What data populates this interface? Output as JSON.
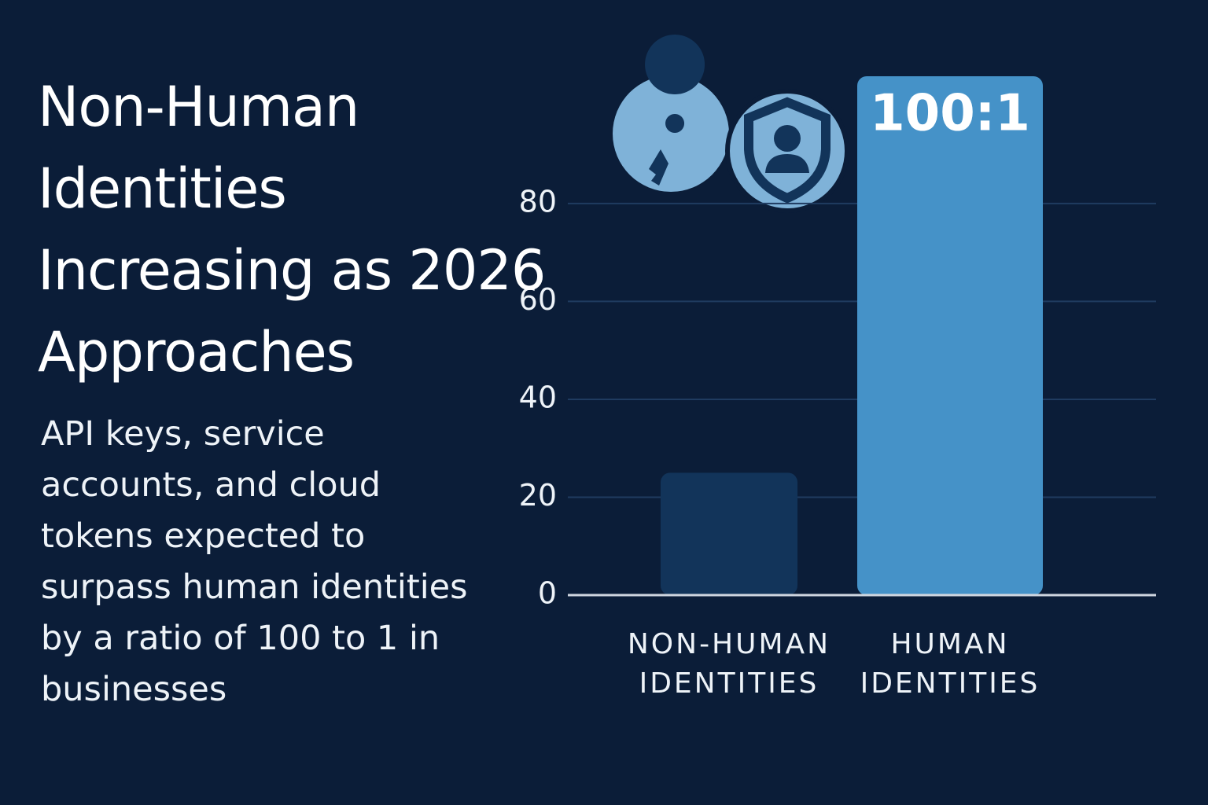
{
  "chart_data": {
    "type": "bar",
    "title": "Non-Human Identities Increasing as 2026 Approaches",
    "subtitle": "API keys, service accounts, and cloud tokens expected to surpass human identities by a ratio of 100 to 1 in businesses",
    "annotation": "100:1",
    "categories": [
      "NON-HUMAN IDENTITIES",
      "HUMAN IDENTITIES"
    ],
    "values": [
      25,
      106
    ],
    "colors": [
      "#12345a",
      "#4592c8"
    ],
    "ylim": [
      0,
      106
    ],
    "yticks": [
      0,
      20,
      40,
      60,
      80
    ],
    "grid": true
  }
}
